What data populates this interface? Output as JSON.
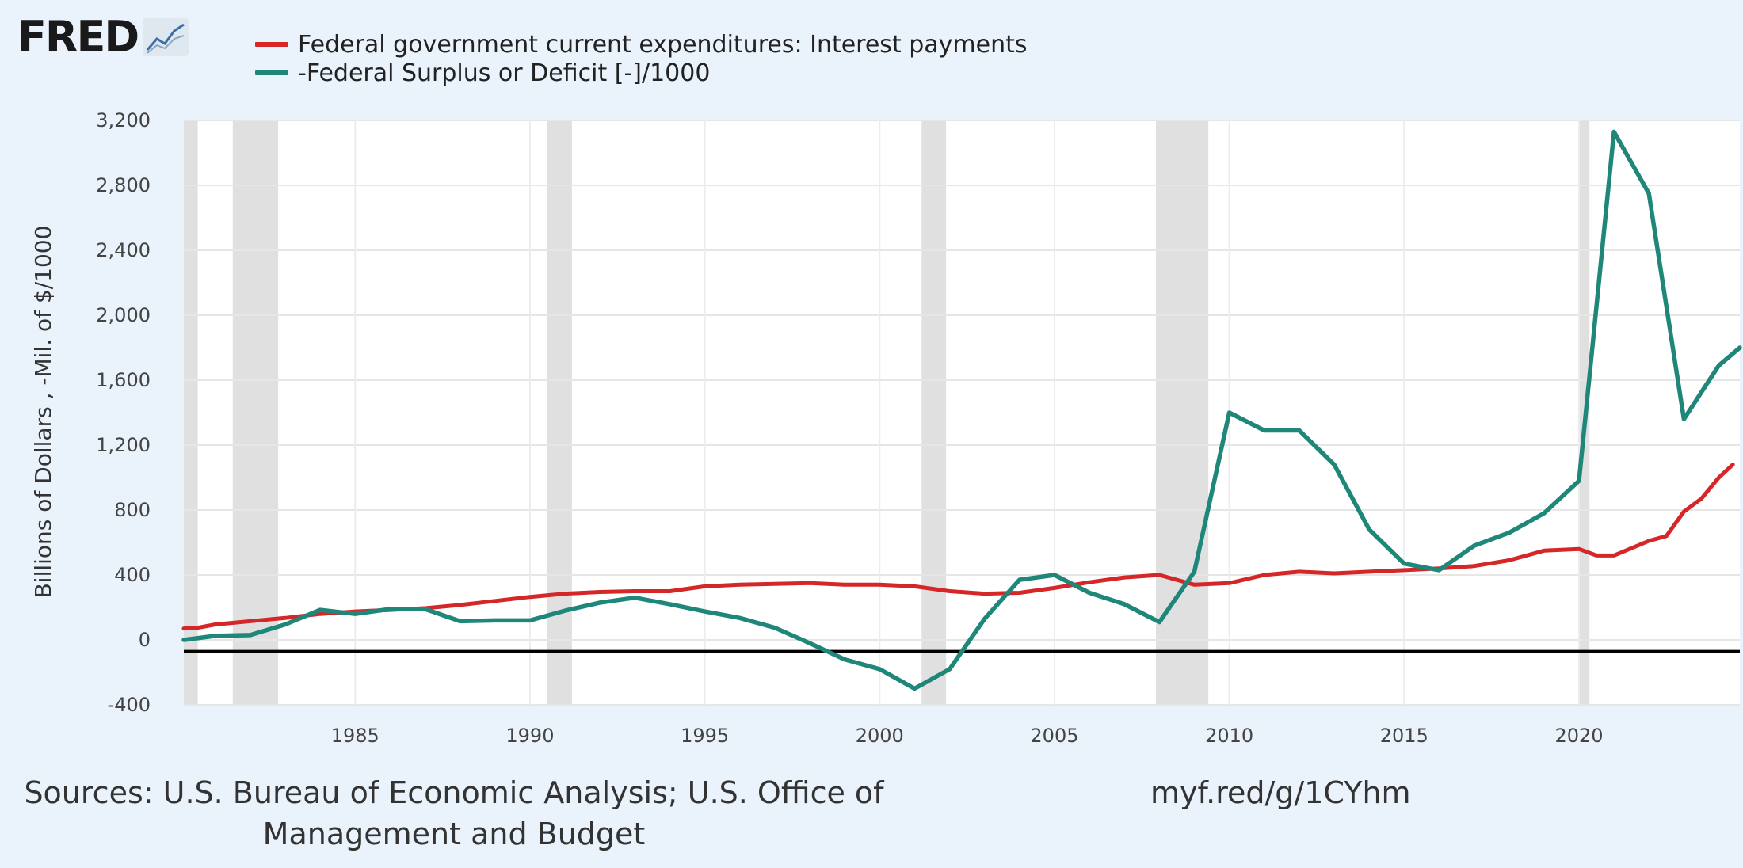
{
  "logo": {
    "text": "FRED"
  },
  "colors": {
    "interest": "#d62728",
    "deficit": "#1f877a",
    "recession": "#e0e0e0",
    "background": "#eaf2fb",
    "plot": "#ffffff",
    "zero_line": "#000000"
  },
  "icons": [
    "fred-logo",
    "line-chart-icon"
  ],
  "sources": "Sources: U.S. Bureau of Economic Analysis; U.S. Office of Management and Budget",
  "short_url": "myf.red/g/1CYhm",
  "chart_data": {
    "type": "line",
    "ylabel": "Billions of Dollars , -Mil. of $/1000",
    "xlim": [
      1980.1,
      2024.6
    ],
    "ylim": [
      -400,
      3200
    ],
    "yticks": [
      -400,
      0,
      400,
      800,
      1200,
      1600,
      2000,
      2400,
      2800,
      3200
    ],
    "ytick_labels": [
      "-400",
      "0",
      "400",
      "800",
      "1,200",
      "1,600",
      "2,000",
      "2,400",
      "2,800",
      "3,200"
    ],
    "xticks": [
      1985,
      1990,
      1995,
      2000,
      2005,
      2010,
      2015,
      2020
    ],
    "xtick_labels": [
      "1985",
      "1990",
      "1995",
      "2000",
      "2005",
      "2010",
      "2015",
      "2020"
    ],
    "zero_line_value": -70,
    "grid": true,
    "legend_placement": "top-left",
    "recessions": [
      [
        1980.0,
        1980.5
      ],
      [
        1981.5,
        1982.8
      ],
      [
        1990.5,
        1991.2
      ],
      [
        2001.2,
        2001.9
      ],
      [
        2007.9,
        2009.4
      ],
      [
        2020.0,
        2020.3
      ]
    ],
    "series": [
      {
        "name": "Federal government current expenditures: Interest payments",
        "color": "#d62728",
        "x": [
          1980.1,
          1980.5,
          1981,
          1982,
          1983,
          1984,
          1985,
          1986,
          1987,
          1988,
          1989,
          1990,
          1991,
          1992,
          1993,
          1994,
          1995,
          1996,
          1997,
          1998,
          1999,
          2000,
          2001,
          2002,
          2003,
          2004,
          2005,
          2006,
          2007,
          2008,
          2009,
          2010,
          2011,
          2012,
          2013,
          2014,
          2015,
          2016,
          2017,
          2018,
          2019,
          2020,
          2020.5,
          2021,
          2022,
          2022.5,
          2023,
          2023.5,
          2024,
          2024.4
        ],
        "y": [
          70,
          75,
          95,
          115,
          135,
          160,
          175,
          185,
          195,
          215,
          240,
          265,
          285,
          295,
          300,
          300,
          330,
          340,
          345,
          350,
          340,
          340,
          330,
          300,
          285,
          290,
          320,
          355,
          385,
          400,
          340,
          350,
          400,
          420,
          410,
          420,
          430,
          440,
          455,
          490,
          550,
          560,
          520,
          520,
          610,
          640,
          790,
          870,
          1000,
          1080
        ]
      },
      {
        "name": "-Federal Surplus or Deficit [-]/1000",
        "color": "#1f877a",
        "x": [
          1980.1,
          1981,
          1982,
          1983,
          1984,
          1985,
          1986,
          1987,
          1988,
          1989,
          1990,
          1991,
          1992,
          1993,
          1994,
          1995,
          1996,
          1997,
          1998,
          1999,
          2000,
          2001,
          2002,
          2003,
          2004,
          2005,
          2006,
          2007,
          2008,
          2009,
          2010,
          2011,
          2012,
          2013,
          2014,
          2015,
          2016,
          2017,
          2018,
          2019,
          2020,
          2021,
          2022,
          2023,
          2024,
          2024.6
        ],
        "y": [
          0,
          25,
          30,
          95,
          185,
          160,
          190,
          190,
          115,
          120,
          120,
          180,
          230,
          260,
          220,
          175,
          135,
          75,
          -20,
          -120,
          -180,
          -300,
          -180,
          130,
          370,
          400,
          290,
          220,
          110,
          420,
          1400,
          1290,
          1290,
          1080,
          680,
          470,
          430,
          580,
          660,
          780,
          980,
          3130,
          2750,
          1360,
          1690,
          1800
        ]
      }
    ]
  }
}
